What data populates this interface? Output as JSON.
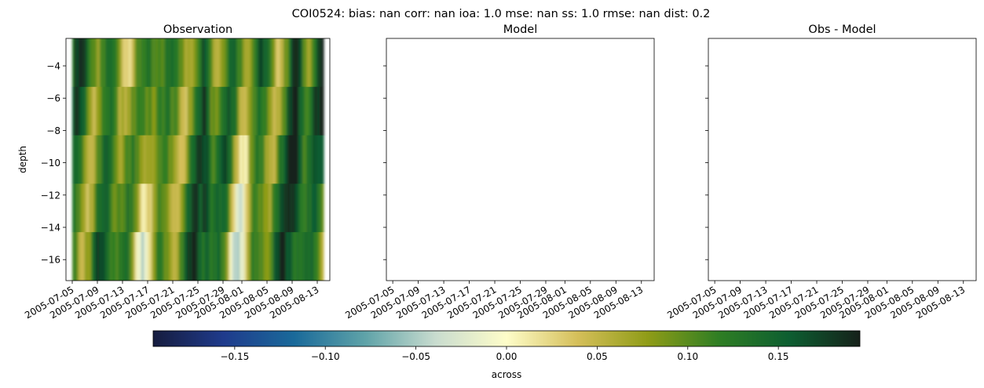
{
  "figure": {
    "suptitle": "COI0524: bias: nan  corr: nan  ioa: 1.0  mse: nan  ss: 1.0  rmse: nan  dist: 0.2"
  },
  "chart_data": [
    {
      "type": "heatmap",
      "title": "Observation",
      "ylabel": "depth",
      "xlabel": "",
      "xlim": [
        "2005-07-04",
        "2005-08-15"
      ],
      "ylim": [
        -17.3,
        -2.3
      ],
      "x_tick_labels": [
        "2005-07-05",
        "2005-07-09",
        "2005-07-13",
        "2005-07-17",
        "2005-07-21",
        "2005-07-25",
        "2005-07-29",
        "2005-08-01",
        "2005-08-05",
        "2005-08-09",
        "2005-08-13"
      ],
      "y_tick_labels": [
        "-4",
        "-6",
        "-8",
        "-10",
        "-12",
        "-14",
        "-16"
      ],
      "y_ticks": [
        -4,
        -6,
        -8,
        -10,
        -12,
        -14,
        -16
      ],
      "has_data": true,
      "depth_layers": [
        {
          "top": -2.3,
          "bottom": -5.3
        },
        {
          "top": -5.3,
          "bottom": -8.3
        },
        {
          "top": -8.3,
          "bottom": -11.3
        },
        {
          "top": -11.3,
          "bottom": -14.3
        },
        {
          "top": -14.3,
          "bottom": -17.3
        }
      ],
      "time_extent": [
        "2005-07-05",
        "2005-08-14"
      ],
      "colormap": "delta (across)",
      "value_range": [
        -0.195,
        0.195
      ]
    },
    {
      "type": "heatmap",
      "title": "Model",
      "has_data": false,
      "xlim": [
        "2005-07-04",
        "2005-08-15"
      ],
      "x_tick_labels": [
        "2005-07-05",
        "2005-07-09",
        "2005-07-13",
        "2005-07-17",
        "2005-07-21",
        "2005-07-25",
        "2005-07-29",
        "2005-08-01",
        "2005-08-05",
        "2005-08-09",
        "2005-08-13"
      ],
      "y_ticks": [
        -4,
        -6,
        -8,
        -10,
        -12,
        -14,
        -16
      ]
    },
    {
      "type": "heatmap",
      "title": "Obs - Model",
      "has_data": false,
      "xlim": [
        "2005-07-04",
        "2005-08-15"
      ],
      "x_tick_labels": [
        "2005-07-05",
        "2005-07-09",
        "2005-07-13",
        "2005-07-17",
        "2005-07-21",
        "2005-07-25",
        "2005-07-29",
        "2005-08-01",
        "2005-08-05",
        "2005-08-09",
        "2005-08-13"
      ],
      "y_ticks": [
        -4,
        -6,
        -8,
        -10,
        -12,
        -14,
        -16
      ]
    }
  ],
  "colorbar": {
    "label": "across",
    "vmin": -0.195,
    "vmax": 0.195,
    "ticks": [
      -0.15,
      -0.1,
      -0.05,
      0.0,
      0.05,
      0.1,
      0.15
    ],
    "tick_labels": [
      "−0.15",
      "−0.10",
      "−0.05",
      "0.00",
      "0.05",
      "0.10",
      "0.15"
    ],
    "colors": [
      "#161c3e",
      "#1f3b8c",
      "#1a6a9a",
      "#5fa3a8",
      "#c9dccf",
      "#fefdc9",
      "#d5bf5a",
      "#8f9c17",
      "#2f7e24",
      "#0d5e31",
      "#16211a"
    ]
  }
}
